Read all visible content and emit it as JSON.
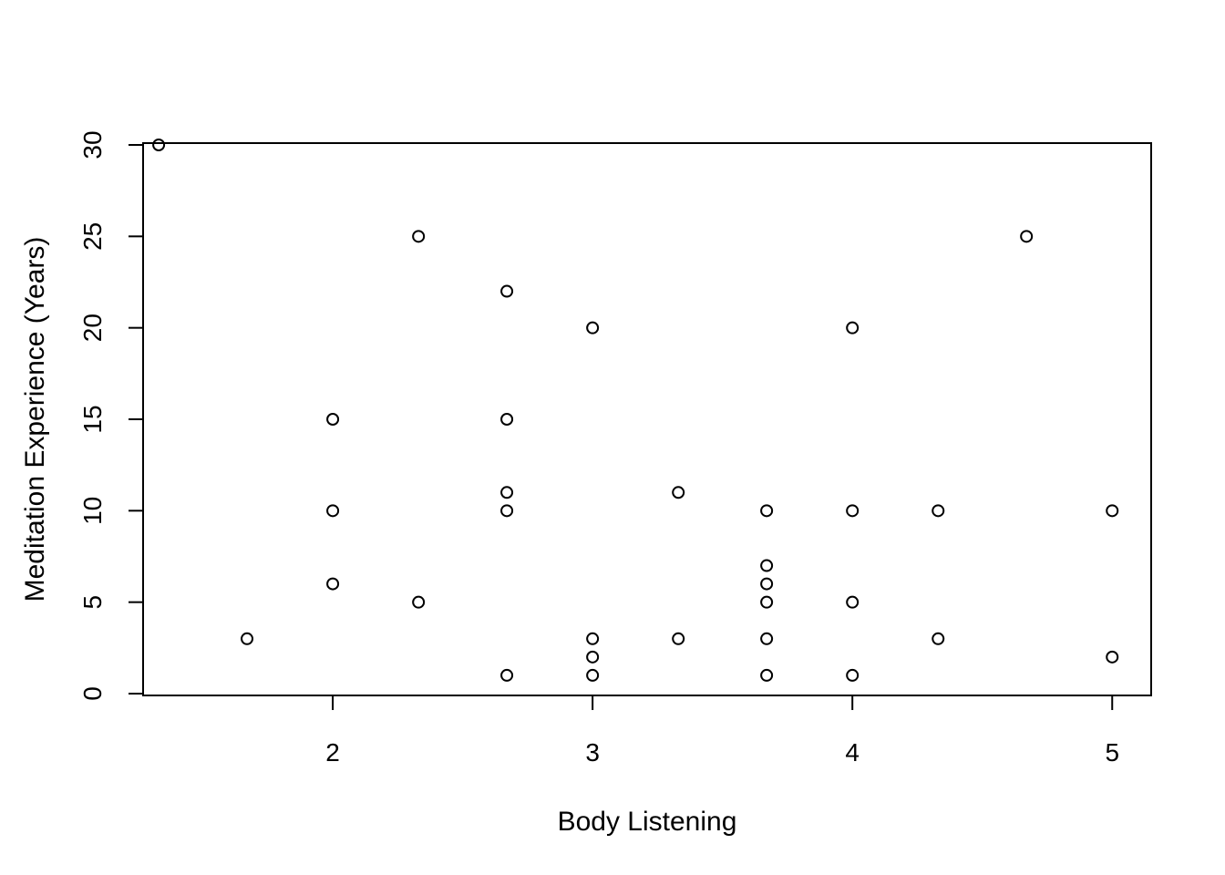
{
  "chart_data": {
    "type": "scatter",
    "title": "",
    "xlabel": "Body Listening",
    "ylabel": "Meditation Experience (Years)",
    "xlim": [
      1.27,
      5.15
    ],
    "ylim": [
      -0.1,
      30.1
    ],
    "xticks": [
      2,
      3,
      4,
      5
    ],
    "yticks": [
      0,
      5,
      10,
      15,
      20,
      25,
      30
    ],
    "grid": false,
    "legend": "none",
    "marker": "open-circle",
    "colors": {
      "point": "#000000",
      "axis": "#000000",
      "background": "#ffffff"
    },
    "points": [
      {
        "x": 1.33,
        "y": 30
      },
      {
        "x": 1.67,
        "y": 3
      },
      {
        "x": 2.0,
        "y": 15
      },
      {
        "x": 2.0,
        "y": 10
      },
      {
        "x": 2.0,
        "y": 6
      },
      {
        "x": 2.33,
        "y": 25
      },
      {
        "x": 2.33,
        "y": 5
      },
      {
        "x": 2.67,
        "y": 22
      },
      {
        "x": 2.67,
        "y": 15
      },
      {
        "x": 2.67,
        "y": 11
      },
      {
        "x": 2.67,
        "y": 10
      },
      {
        "x": 2.67,
        "y": 1
      },
      {
        "x": 3.0,
        "y": 20
      },
      {
        "x": 3.0,
        "y": 3
      },
      {
        "x": 3.0,
        "y": 2
      },
      {
        "x": 3.0,
        "y": 1
      },
      {
        "x": 3.33,
        "y": 11
      },
      {
        "x": 3.33,
        "y": 3
      },
      {
        "x": 3.67,
        "y": 10
      },
      {
        "x": 3.67,
        "y": 7
      },
      {
        "x": 3.67,
        "y": 6
      },
      {
        "x": 3.67,
        "y": 5
      },
      {
        "x": 3.67,
        "y": 3
      },
      {
        "x": 3.67,
        "y": 1
      },
      {
        "x": 4.0,
        "y": 20
      },
      {
        "x": 4.0,
        "y": 10
      },
      {
        "x": 4.0,
        "y": 5
      },
      {
        "x": 4.0,
        "y": 1
      },
      {
        "x": 4.33,
        "y": 10
      },
      {
        "x": 4.33,
        "y": 3
      },
      {
        "x": 4.67,
        "y": 25
      },
      {
        "x": 5.0,
        "y": 10
      },
      {
        "x": 5.0,
        "y": 2
      }
    ]
  }
}
